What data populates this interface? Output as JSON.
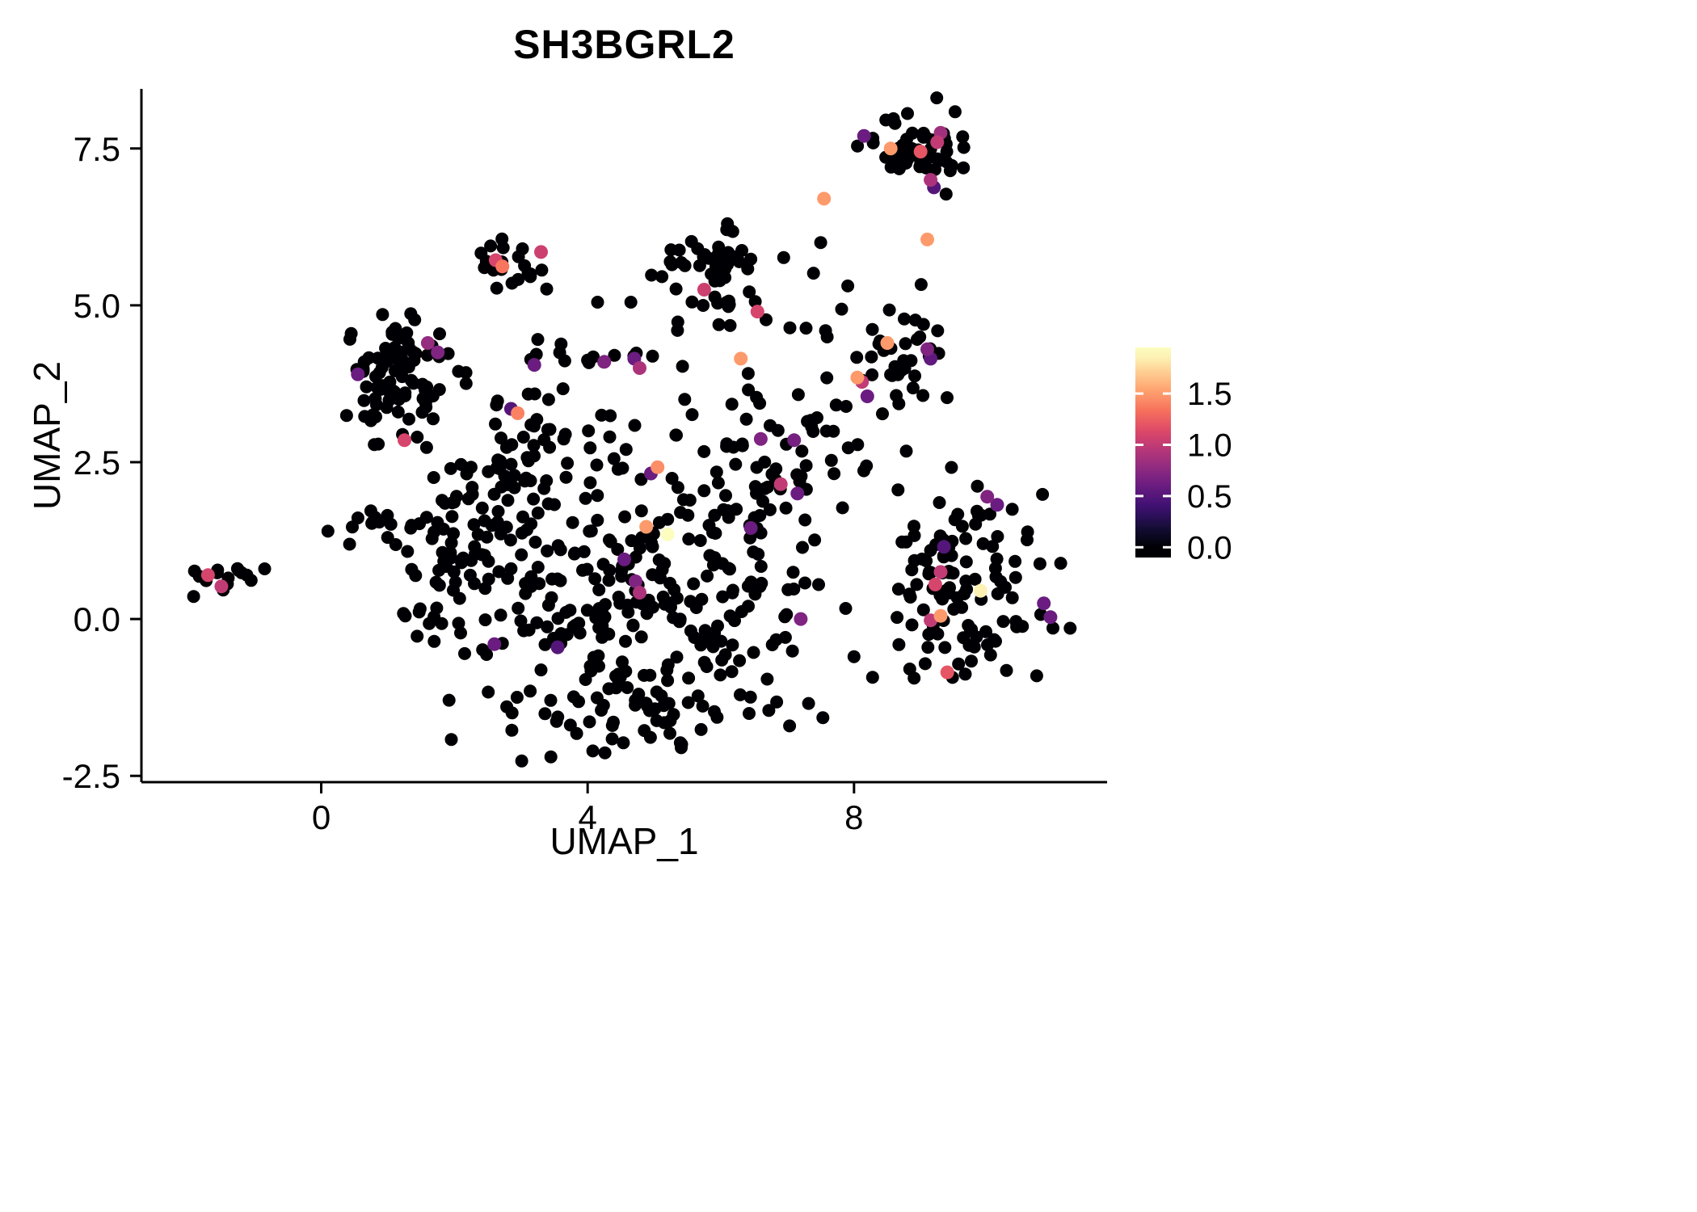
{
  "chart_data": {
    "type": "scatter",
    "title": "SH3BGRL2",
    "xlabel": "UMAP_1",
    "ylabel": "UMAP_2",
    "xlim": [
      -2.7,
      11.8
    ],
    "ylim": [
      -2.6,
      8.45
    ],
    "grid": false,
    "x_ticks": [
      {
        "value": 0,
        "label": "0"
      },
      {
        "value": 4,
        "label": "4"
      },
      {
        "value": 8,
        "label": "8"
      }
    ],
    "y_ticks": [
      {
        "value": -2.5,
        "label": "-2.5"
      },
      {
        "value": 0.0,
        "label": "0.0"
      },
      {
        "value": 2.5,
        "label": "2.5"
      },
      {
        "value": 5.0,
        "label": "5.0"
      },
      {
        "value": 7.5,
        "label": "7.5"
      }
    ],
    "legend": {
      "position": "right",
      "min": 0,
      "max": 1.9,
      "ticks": [
        {
          "value": 0.0,
          "label": "0.0"
        },
        {
          "value": 0.5,
          "label": "0.5"
        },
        {
          "value": 1.0,
          "label": "1.0"
        },
        {
          "value": 1.5,
          "label": "1.5"
        }
      ],
      "colormap": "magma",
      "colors": [
        "#000004",
        "#140e36",
        "#3b0f70",
        "#641a80",
        "#8c2981",
        "#b73779",
        "#de4968",
        "#f7705c",
        "#fe9f6d",
        "#fecf92",
        "#fcfdbf"
      ]
    },
    "point_style": {
      "radius": 8,
      "zero_color": "#000004"
    },
    "background_clusters": [
      {
        "name": "far-left",
        "cx": -1.45,
        "cy": 0.65,
        "sx": 0.22,
        "sy": 0.13,
        "n": 14,
        "seed": 101
      },
      {
        "name": "left-arm",
        "cx": 0.8,
        "cy": 1.5,
        "sx": 0.3,
        "sy": 0.15,
        "n": 12,
        "seed": 102
      },
      {
        "name": "left-upper",
        "cx": 1.15,
        "cy": 3.8,
        "sx": 0.42,
        "sy": 0.5,
        "n": 85,
        "seed": 103
      },
      {
        "name": "left-lower",
        "cx": 1.9,
        "cy": 0.9,
        "sx": 0.45,
        "sy": 0.75,
        "n": 72,
        "seed": 104
      },
      {
        "name": "central",
        "cx": 4.3,
        "cy": 0.6,
        "sx": 0.95,
        "sy": 0.95,
        "n": 120,
        "seed": 105
      },
      {
        "name": "central-right",
        "cx": 5.9,
        "cy": 0.35,
        "sx": 0.75,
        "sy": 0.9,
        "n": 105,
        "seed": 106
      },
      {
        "name": "bottom-band",
        "cx": 4.6,
        "cy": -1.4,
        "sx": 1.15,
        "sy": 0.35,
        "n": 65,
        "seed": 107
      },
      {
        "name": "upper-band",
        "cx": 3.9,
        "cy": 2.75,
        "sx": 1.0,
        "sy": 0.4,
        "n": 40,
        "seed": 108
      },
      {
        "name": "mid-left",
        "cx": 3.0,
        "cy": 1.9,
        "sx": 0.5,
        "sy": 0.6,
        "n": 30,
        "seed": 109
      },
      {
        "name": "bridge-right",
        "cx": 6.7,
        "cy": 2.2,
        "sx": 0.5,
        "sy": 0.75,
        "n": 45,
        "seed": 110
      },
      {
        "name": "mid-top",
        "cx": 5.95,
        "cy": 5.5,
        "sx": 0.45,
        "sy": 0.38,
        "n": 55,
        "seed": 111
      },
      {
        "name": "small-top",
        "cx": 2.85,
        "cy": 5.7,
        "sx": 0.3,
        "sy": 0.28,
        "n": 20,
        "seed": 112
      },
      {
        "name": "row-four",
        "cx": 4.2,
        "cy": 4.2,
        "sx": 0.9,
        "sy": 0.17,
        "n": 16,
        "seed": 113
      },
      {
        "name": "patch-three",
        "cx": 2.95,
        "cy": 3.35,
        "sx": 0.25,
        "sy": 0.2,
        "n": 6,
        "seed": 114
      },
      {
        "name": "right-mid",
        "cx": 8.6,
        "cy": 4.25,
        "sx": 0.42,
        "sy": 0.4,
        "n": 38,
        "seed": 115
      },
      {
        "name": "top-right",
        "cx": 8.9,
        "cy": 7.5,
        "sx": 0.4,
        "sy": 0.27,
        "n": 58,
        "seed": 116
      },
      {
        "name": "bottom-right",
        "cx": 9.7,
        "cy": 0.55,
        "sx": 0.68,
        "sy": 0.85,
        "n": 115,
        "seed": 117
      },
      {
        "name": "connector-top",
        "cx": 7.4,
        "cy": 4.9,
        "sx": 0.35,
        "sy": 0.3,
        "n": 8,
        "seed": 118
      },
      {
        "name": "connector-right",
        "cx": 7.9,
        "cy": 2.7,
        "sx": 0.3,
        "sy": 0.45,
        "n": 10,
        "seed": 119
      }
    ],
    "background_singles": [
      [
        -0.85,
        0.8
      ],
      [
        4.15,
        5.05
      ],
      [
        4.65,
        5.05
      ],
      [
        0.1,
        1.4
      ],
      [
        7.3,
        3.15
      ],
      [
        5.35,
        4.6
      ],
      [
        6.1,
        6.3
      ],
      [
        7.5,
        6.0
      ],
      [
        8.0,
        -0.6
      ],
      [
        0.45,
        4.55
      ]
    ],
    "expressing_points": [
      [
        8.15,
        7.7,
        0.6
      ],
      [
        8.55,
        7.5,
        1.5
      ],
      [
        9.0,
        7.45,
        1.2
      ],
      [
        9.25,
        7.6,
        1.0
      ],
      [
        9.3,
        7.75,
        0.85
      ],
      [
        9.15,
        7.0,
        0.9
      ],
      [
        9.2,
        6.88,
        0.5
      ],
      [
        7.55,
        6.7,
        1.5
      ],
      [
        9.1,
        6.05,
        1.5
      ],
      [
        2.62,
        5.72,
        1.1
      ],
      [
        2.72,
        5.62,
        1.35
      ],
      [
        3.3,
        5.85,
        1.05
      ],
      [
        5.75,
        5.25,
        1.05
      ],
      [
        6.55,
        4.9,
        1.1
      ],
      [
        6.3,
        4.15,
        1.5
      ],
      [
        4.25,
        4.1,
        0.7
      ],
      [
        4.7,
        4.15,
        0.6
      ],
      [
        4.78,
        4.0,
        0.9
      ],
      [
        3.2,
        4.05,
        0.6
      ],
      [
        8.5,
        4.4,
        1.5
      ],
      [
        9.1,
        4.3,
        0.7
      ],
      [
        8.05,
        3.85,
        1.5
      ],
      [
        8.12,
        3.78,
        1.0
      ],
      [
        8.2,
        3.55,
        0.6
      ],
      [
        9.15,
        4.15,
        0.55
      ],
      [
        1.6,
        4.4,
        0.8
      ],
      [
        1.75,
        4.25,
        0.7
      ],
      [
        0.55,
        3.9,
        0.6
      ],
      [
        1.25,
        2.85,
        1.1
      ],
      [
        2.85,
        3.35,
        0.5
      ],
      [
        2.95,
        3.28,
        1.4
      ],
      [
        5.05,
        2.42,
        1.45
      ],
      [
        4.95,
        2.32,
        0.6
      ],
      [
        6.6,
        2.87,
        0.7
      ],
      [
        7.1,
        2.85,
        0.65
      ],
      [
        6.9,
        2.15,
        1.0
      ],
      [
        7.15,
        2.0,
        0.6
      ],
      [
        5.2,
        1.35,
        1.9
      ],
      [
        4.88,
        1.47,
        1.5
      ],
      [
        4.55,
        0.95,
        0.6
      ],
      [
        4.72,
        0.6,
        0.7
      ],
      [
        4.78,
        0.42,
        0.9
      ],
      [
        6.45,
        1.45,
        0.6
      ],
      [
        7.2,
        0.0,
        0.7
      ],
      [
        2.6,
        -0.4,
        0.6
      ],
      [
        3.55,
        -0.45,
        0.5
      ],
      [
        -1.7,
        0.7,
        1.1
      ],
      [
        -1.5,
        0.52,
        1.0
      ],
      [
        10.0,
        1.95,
        0.7
      ],
      [
        10.15,
        1.82,
        0.6
      ],
      [
        9.35,
        1.15,
        0.5
      ],
      [
        9.3,
        0.75,
        1.0
      ],
      [
        9.22,
        0.55,
        1.1
      ],
      [
        9.9,
        0.45,
        1.85
      ],
      [
        9.3,
        0.05,
        1.5
      ],
      [
        9.15,
        -0.02,
        1.0
      ],
      [
        10.85,
        0.25,
        0.6
      ],
      [
        9.4,
        -0.85,
        1.2
      ],
      [
        10.95,
        0.03,
        0.6
      ]
    ]
  }
}
